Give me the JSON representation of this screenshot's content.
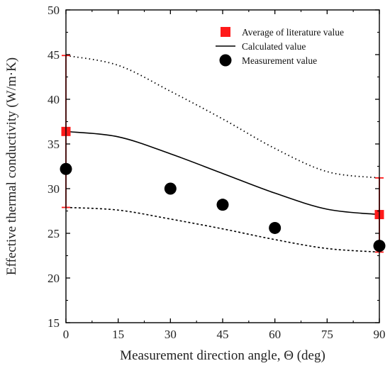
{
  "chart_data": {
    "type": "scatter",
    "xlabel": "Measurement direction angle, Θ (deg)",
    "ylabel": "Effective thermal conductivity (W/m·K)",
    "xlim": [
      0,
      90
    ],
    "ylim": [
      15,
      50
    ],
    "xticks": [
      0,
      15,
      30,
      45,
      60,
      75,
      90
    ],
    "yticks": [
      15,
      20,
      25,
      30,
      35,
      40,
      45,
      50
    ],
    "grid": false,
    "legend_position": "top-right",
    "series": [
      {
        "name": "Average of literature value",
        "kind": "marker-errorbar",
        "marker": "square",
        "color": "#ff1a1a",
        "x": [
          0,
          90
        ],
        "y": [
          36.4,
          27.1
        ],
        "yerr_low": [
          27.9,
          22.9
        ],
        "yerr_high": [
          44.9,
          31.2
        ]
      },
      {
        "name": "Calculated value",
        "kind": "line",
        "color": "#000000",
        "x": [
          0,
          15,
          30,
          45,
          60,
          75,
          90
        ],
        "y": [
          36.4,
          35.8,
          33.9,
          31.7,
          29.5,
          27.7,
          27.1
        ]
      },
      {
        "name": "",
        "kind": "line-dotted",
        "color": "#000000",
        "x": [
          0,
          15,
          30,
          45,
          60,
          75,
          90
        ],
        "y": [
          44.9,
          43.8,
          40.9,
          37.8,
          34.5,
          31.9,
          31.2
        ]
      },
      {
        "name": "",
        "kind": "line-dashed",
        "color": "#000000",
        "x": [
          0,
          15,
          30,
          45,
          60,
          75,
          90
        ],
        "y": [
          27.9,
          27.6,
          26.6,
          25.5,
          24.3,
          23.3,
          22.9
        ]
      },
      {
        "name": "Measurement value",
        "kind": "marker",
        "marker": "circle",
        "color": "#000000",
        "x": [
          0,
          30,
          45,
          60,
          90
        ],
        "y": [
          32.2,
          30.0,
          28.2,
          25.6,
          23.6
        ]
      }
    ]
  }
}
